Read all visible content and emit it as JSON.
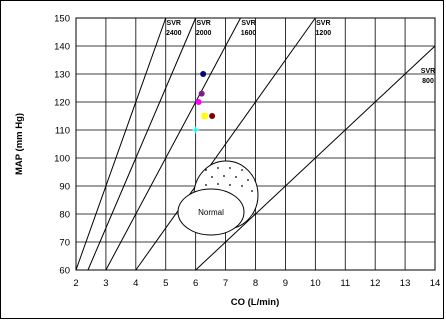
{
  "chart_data": {
    "type": "scatter",
    "title": "",
    "xlabel": "CO (L/min)",
    "ylabel": "MAP (mm Hg)",
    "xlim": [
      2,
      14
    ],
    "ylim": [
      60,
      150
    ],
    "x_ticks": [
      2,
      3,
      4,
      5,
      6,
      7,
      8,
      9,
      10,
      11,
      12,
      13,
      14
    ],
    "y_ticks": [
      60,
      70,
      80,
      90,
      100,
      110,
      120,
      130,
      140,
      150
    ],
    "grid": true,
    "legend": "none",
    "series": [
      {
        "color": "#000080",
        "points": [
          [
            6.25,
            130
          ]
        ]
      },
      {
        "color": "#7b2080",
        "points": [
          [
            6.2,
            123
          ]
        ]
      },
      {
        "color": "#ff00ff",
        "points": [
          [
            6.1,
            120
          ]
        ]
      },
      {
        "color": "#ffff00",
        "points": [
          [
            6.3,
            115
          ]
        ]
      },
      {
        "color": "#800000",
        "points": [
          [
            6.55,
            115
          ]
        ]
      },
      {
        "color": "#00ffff",
        "points": [
          [
            6.0,
            110
          ]
        ]
      }
    ],
    "svr_lines": [
      {
        "label_top": "SVR",
        "label_bottom": "2400",
        "value": 2400
      },
      {
        "label_top": "SVR",
        "label_bottom": "2000",
        "value": 2000
      },
      {
        "label_top": "SVR",
        "label_bottom": "1600",
        "value": 1600
      },
      {
        "label_top": "SVR",
        "label_bottom": "1200",
        "value": 1200
      },
      {
        "label_top": "SVR",
        "label_bottom": "800",
        "value": 800
      }
    ],
    "annotations": [
      {
        "text": "Normal"
      }
    ]
  }
}
